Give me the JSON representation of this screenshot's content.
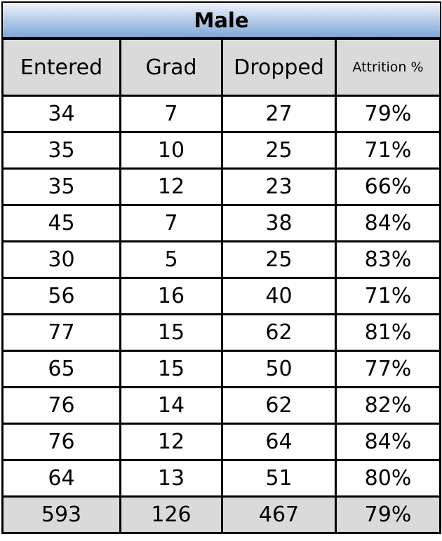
{
  "title": "Male",
  "columns": [
    "Entered",
    "Grad",
    "Dropped",
    "Attrition %"
  ],
  "rows": [
    [
      "34",
      "7",
      "27",
      "79%"
    ],
    [
      "35",
      "10",
      "25",
      "71%"
    ],
    [
      "35",
      "12",
      "23",
      "66%"
    ],
    [
      "45",
      "7",
      "38",
      "84%"
    ],
    [
      "30",
      "5",
      "25",
      "83%"
    ],
    [
      "56",
      "16",
      "40",
      "71%"
    ],
    [
      "77",
      "15",
      "62",
      "81%"
    ],
    [
      "65",
      "15",
      "50",
      "77%"
    ],
    [
      "76",
      "14",
      "62",
      "82%"
    ],
    [
      "76",
      "12",
      "64",
      "84%"
    ],
    [
      "64",
      "13",
      "51",
      "80%"
    ]
  ],
  "total": [
    "593",
    "126",
    "467",
    "79%"
  ],
  "colors": {
    "title_gradient_top": "#eef3fa",
    "title_gradient_bottom": "#7fa6d6",
    "header_bg": "#dadada",
    "total_bg": "#dadada"
  }
}
